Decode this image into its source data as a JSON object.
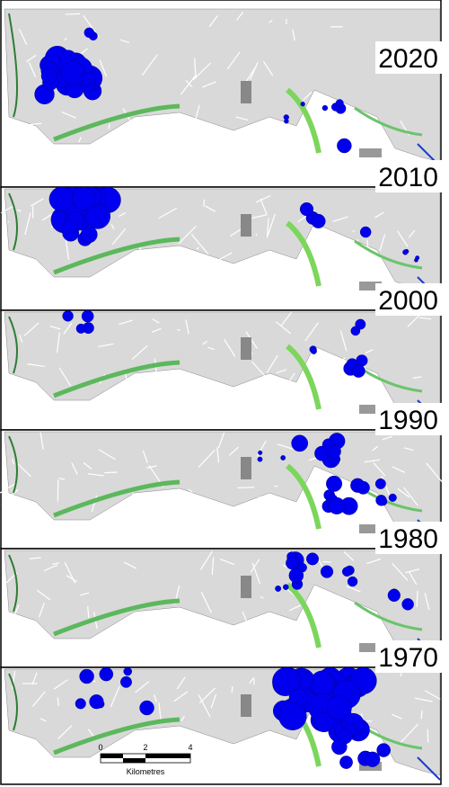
{
  "panels": [
    {
      "year": "2020"
    },
    {
      "year": "2010"
    },
    {
      "year": "2000"
    },
    {
      "year": "1990"
    },
    {
      "year": "1980"
    },
    {
      "year": "1970"
    }
  ],
  "scale_bar": {
    "ticks": [
      "0",
      "2",
      "4"
    ],
    "unit": "Kilometres"
  }
}
